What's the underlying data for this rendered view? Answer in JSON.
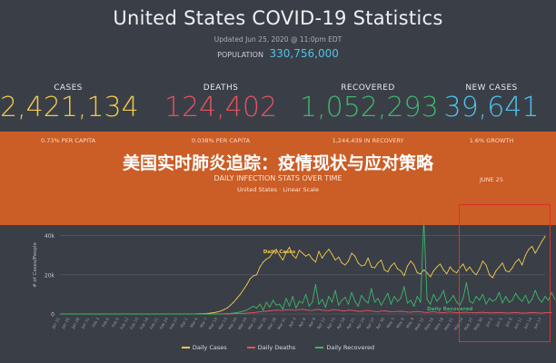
{
  "header": {
    "title": "United States COVID-19 Statistics",
    "updated": "Updated Jun 25, 2020 @ 11:0pm EDT",
    "population_label": "POPULATION",
    "population_value": "330,756,000"
  },
  "stats": [
    {
      "label": "CASES",
      "value": "2,421,134",
      "sub": "0.73% PER CAPITA",
      "color": "#f2c94c"
    },
    {
      "label": "DEATHS",
      "value": "124,402",
      "sub": "0.038% PER CAPITA",
      "color": "#e2535e"
    },
    {
      "label": "RECOVERED",
      "value": "1,052,293",
      "sub": "1,244,439 IN RECOVERY",
      "color": "#3fb56a"
    },
    {
      "label": "NEW CASES",
      "value": "39,641",
      "sub": "1.6% GROWTH",
      "color": "#4fc1e9",
      "extra": "JUNE 25"
    }
  ],
  "banner": {
    "headline": "美国实时肺炎追踪：疫情现状与应对策略",
    "color": "#d66024"
  },
  "chart_data": {
    "type": "line",
    "title": "DAILY INFECTION STATS OVER TIME",
    "subtitle": "United States · Linear Scale",
    "ylabel": "# of Cases/People",
    "ylim": [
      0,
      50000
    ],
    "yticks": [
      0,
      20000,
      40000
    ],
    "ytick_labels": [
      "0",
      "20k",
      "40k"
    ],
    "x_start": "2020-01-22",
    "x_end": "2020-06-25",
    "grid": true,
    "legend": "bottom",
    "series": [
      {
        "name": "Daily Cases",
        "color": "#f2c94c",
        "values": [
          0,
          0,
          0,
          0,
          0,
          0,
          0,
          0,
          0,
          0,
          0,
          0,
          0,
          0,
          0,
          0,
          0,
          0,
          0,
          0,
          0,
          0,
          0,
          0,
          0,
          0,
          0,
          0,
          0,
          0,
          0,
          0,
          0,
          0,
          0,
          0,
          0,
          0,
          10,
          20,
          40,
          60,
          80,
          120,
          200,
          300,
          500,
          700,
          1000,
          1500,
          2200,
          3000,
          4500,
          6000,
          8000,
          10000,
          12500,
          15000,
          18000,
          19500,
          20000,
          24000,
          26500,
          28000,
          29000,
          31500,
          33000,
          30000,
          27500,
          31500,
          34000,
          30000,
          28500,
          32500,
          31000,
          29500,
          30500,
          28000,
          26500,
          32000,
          28500,
          31000,
          33000,
          30500,
          27500,
          29000,
          26000,
          25000,
          27000,
          31000,
          29500,
          26000,
          24500,
          25000,
          28500,
          24000,
          23500,
          26000,
          27500,
          22500,
          21500,
          24500,
          26000,
          23000,
          22000,
          19500,
          24500,
          27000,
          25000,
          21000,
          20500,
          22500,
          21000,
          19000,
          22000,
          24000,
          25500,
          22500,
          20500,
          24000,
          22000,
          21000,
          23500,
          25500,
          22000,
          24000,
          21500,
          20000,
          23000,
          27000,
          25000,
          20000,
          18500,
          22000,
          24000,
          26000,
          22000,
          21500,
          23500,
          26500,
          28000,
          25000,
          30000,
          33000,
          34500,
          31000,
          34000,
          37000,
          39641
        ]
      },
      {
        "name": "Daily Deaths",
        "color": "#e2535e",
        "values": [
          0,
          0,
          0,
          0,
          0,
          0,
          0,
          0,
          0,
          0,
          0,
          0,
          0,
          0,
          0,
          0,
          0,
          0,
          0,
          0,
          0,
          0,
          0,
          0,
          0,
          0,
          0,
          0,
          0,
          0,
          0,
          0,
          0,
          0,
          0,
          0,
          0,
          0,
          0,
          0,
          1,
          1,
          2,
          3,
          4,
          6,
          8,
          12,
          20,
          30,
          40,
          60,
          90,
          120,
          180,
          250,
          320,
          420,
          550,
          700,
          900,
          1100,
          1300,
          1400,
          1600,
          1800,
          2000,
          1900,
          1800,
          2100,
          2200,
          2000,
          1900,
          2300,
          2400,
          2100,
          1900,
          1800,
          2200,
          2300,
          2000,
          1800,
          1700,
          2100,
          2200,
          1900,
          1700,
          1600,
          2000,
          1900,
          1600,
          1400,
          1300,
          1700,
          1800,
          1500,
          1300,
          1200,
          1500,
          1600,
          1400,
          1200,
          1100,
          1300,
          1400,
          1200,
          1000,
          900,
          1200,
          1300,
          1100,
          900,
          800,
          1000,
          1100,
          900,
          800,
          700,
          900,
          1000,
          850,
          700,
          650,
          850,
          900,
          750,
          650,
          600,
          800,
          850,
          700,
          600,
          550,
          700,
          800,
          650,
          550,
          500,
          650,
          750,
          600,
          500,
          450,
          600,
          700,
          650,
          550,
          500,
          600,
          650,
          700
        ]
      },
      {
        "name": "Daily Recovered",
        "color": "#3fb56a",
        "values": [
          0,
          0,
          0,
          0,
          0,
          0,
          0,
          0,
          0,
          0,
          0,
          0,
          0,
          0,
          0,
          0,
          0,
          0,
          0,
          0,
          0,
          0,
          0,
          0,
          0,
          0,
          0,
          0,
          0,
          0,
          0,
          0,
          0,
          0,
          0,
          0,
          0,
          0,
          0,
          0,
          0,
          0,
          0,
          0,
          0,
          0,
          0,
          0,
          10,
          50,
          100,
          200,
          300,
          500,
          700,
          1000,
          1500,
          2000,
          3000,
          4000,
          3000,
          5000,
          2000,
          6000,
          3500,
          7000,
          4500,
          5000,
          2500,
          8000,
          4000,
          9000,
          3000,
          6500,
          5500,
          10000,
          4000,
          6000,
          15000,
          5000,
          7500,
          3500,
          9000,
          6000,
          12000,
          4500,
          7000,
          8500,
          5000,
          11000,
          6500,
          4000,
          9500,
          7000,
          5500,
          13000,
          6000,
          8000,
          4500,
          7500,
          10500,
          5000,
          9000,
          6500,
          8000,
          14000,
          5500,
          7000,
          4000,
          9000,
          6000,
          48000,
          7500,
          5000,
          10000,
          6500,
          8500,
          12000,
          5500,
          7000,
          9500,
          6000,
          4500,
          8000,
          16000,
          6500,
          5500,
          9000,
          7000,
          10000,
          5000,
          8000,
          6500,
          7500,
          11000,
          5500,
          9000,
          6000,
          7000,
          10500,
          8000,
          6500,
          9500,
          5500,
          7500,
          12000,
          8000,
          6000,
          9000,
          7000,
          11000,
          7500
        ]
      }
    ],
    "annotations": [
      {
        "text": "Daily Cases",
        "series": "Daily Cases"
      },
      {
        "text": "Daily Recovered",
        "series": "Daily Recovered"
      },
      {
        "text": "Daily Deaths",
        "series": "Daily Deaths"
      }
    ]
  }
}
